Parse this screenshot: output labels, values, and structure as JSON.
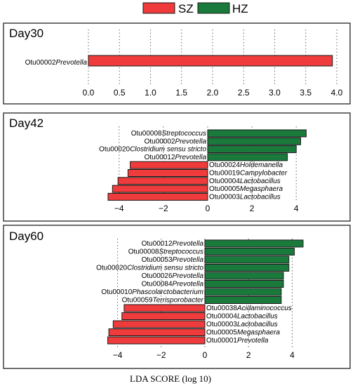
{
  "colors": {
    "SZ": "#ef3b3b",
    "HZ": "#1a7a3c"
  },
  "chart_data": {
    "type": "bar",
    "orientation": "horizontal",
    "xlabel": "LDA SCORE (log 10)",
    "legend": {
      "placement": "top-center",
      "entries": [
        {
          "name": "SZ",
          "color": "#ef3b3b"
        },
        {
          "name": "HZ",
          "color": "#1a7a3c"
        }
      ]
    },
    "grid": "vertical dotted",
    "panels": [
      {
        "title": "Day30",
        "xlim": [
          0.0,
          4.0
        ],
        "ticks": [
          "0.0",
          "0.5",
          "1.0",
          "1.5",
          "2.0",
          "2.5",
          "3.0",
          "3.5",
          "4.0"
        ],
        "bars": [
          {
            "otu": "Otu00002",
            "taxon": "Prevotella",
            "group": "SZ",
            "value": 3.93
          }
        ]
      },
      {
        "title": "Day42",
        "xlim": [
          -4.5,
          4.5
        ],
        "ticks": [
          "−4",
          "−2",
          "0",
          "2",
          "4"
        ],
        "bars": [
          {
            "otu": "Otu00008",
            "taxon": "Streptococcus",
            "group": "HZ",
            "value": 4.45
          },
          {
            "otu": "Otu00002",
            "taxon": "Prevotella",
            "group": "HZ",
            "value": 4.2
          },
          {
            "otu": "Otu00020",
            "taxon": "Clostridium sensu stricto",
            "group": "HZ",
            "value": 4.0
          },
          {
            "otu": "Otu00012",
            "taxon": "Prevotella",
            "group": "HZ",
            "value": 3.6
          },
          {
            "otu": "Otu00024",
            "taxon": "Holdemanella",
            "group": "SZ",
            "value": -3.5
          },
          {
            "otu": "Otu00019",
            "taxon": "Campylobacter",
            "group": "SZ",
            "value": -3.6
          },
          {
            "otu": "Otu00004",
            "taxon": "Lactobacillus",
            "group": "SZ",
            "value": -4.05
          },
          {
            "otu": "Otu00005",
            "taxon": "Megasphaera",
            "group": "SZ",
            "value": -4.3
          },
          {
            "otu": "Otu00003",
            "taxon": "Lactobacillus",
            "group": "SZ",
            "value": -4.5
          }
        ]
      },
      {
        "title": "Day60",
        "xlim": [
          -4.5,
          4.5
        ],
        "ticks": [
          "−4",
          "−2",
          "0",
          "2",
          "4"
        ],
        "bars": [
          {
            "otu": "Otu00012",
            "taxon": "Prevotella",
            "group": "HZ",
            "value": 4.5
          },
          {
            "otu": "Otu00008",
            "taxon": "Streptococcus",
            "group": "HZ",
            "value": 4.1
          },
          {
            "otu": "Otu00053",
            "taxon": "Prevotella",
            "group": "HZ",
            "value": 3.85
          },
          {
            "otu": "Otu00020",
            "taxon": "Clostridium sensu stricto",
            "group": "HZ",
            "value": 3.85
          },
          {
            "otu": "Otu00026",
            "taxon": "Prevotella",
            "group": "HZ",
            "value": 3.6
          },
          {
            "otu": "Otu00084",
            "taxon": "Prevotella",
            "group": "HZ",
            "value": 3.6
          },
          {
            "otu": "Otu00010",
            "taxon": "Phascolarctobacterium",
            "group": "HZ",
            "value": 3.5
          },
          {
            "otu": "Otu00059",
            "taxon": "Terrisporobacter",
            "group": "HZ",
            "value": 3.5
          },
          {
            "otu": "Otu00038",
            "taxon": "Acidaminococcus",
            "group": "SZ",
            "value": -3.7
          },
          {
            "otu": "Otu00004",
            "taxon": "Lactobacillus",
            "group": "SZ",
            "value": -3.8
          },
          {
            "otu": "Otu00003",
            "taxon": "Lactobacillus",
            "group": "SZ",
            "value": -4.2
          },
          {
            "otu": "Otu00005",
            "taxon": "Megasphaera",
            "group": "SZ",
            "value": -4.4
          },
          {
            "otu": "Otu00001",
            "taxon": "Prevotella",
            "group": "SZ",
            "value": -4.45
          }
        ]
      }
    ]
  }
}
